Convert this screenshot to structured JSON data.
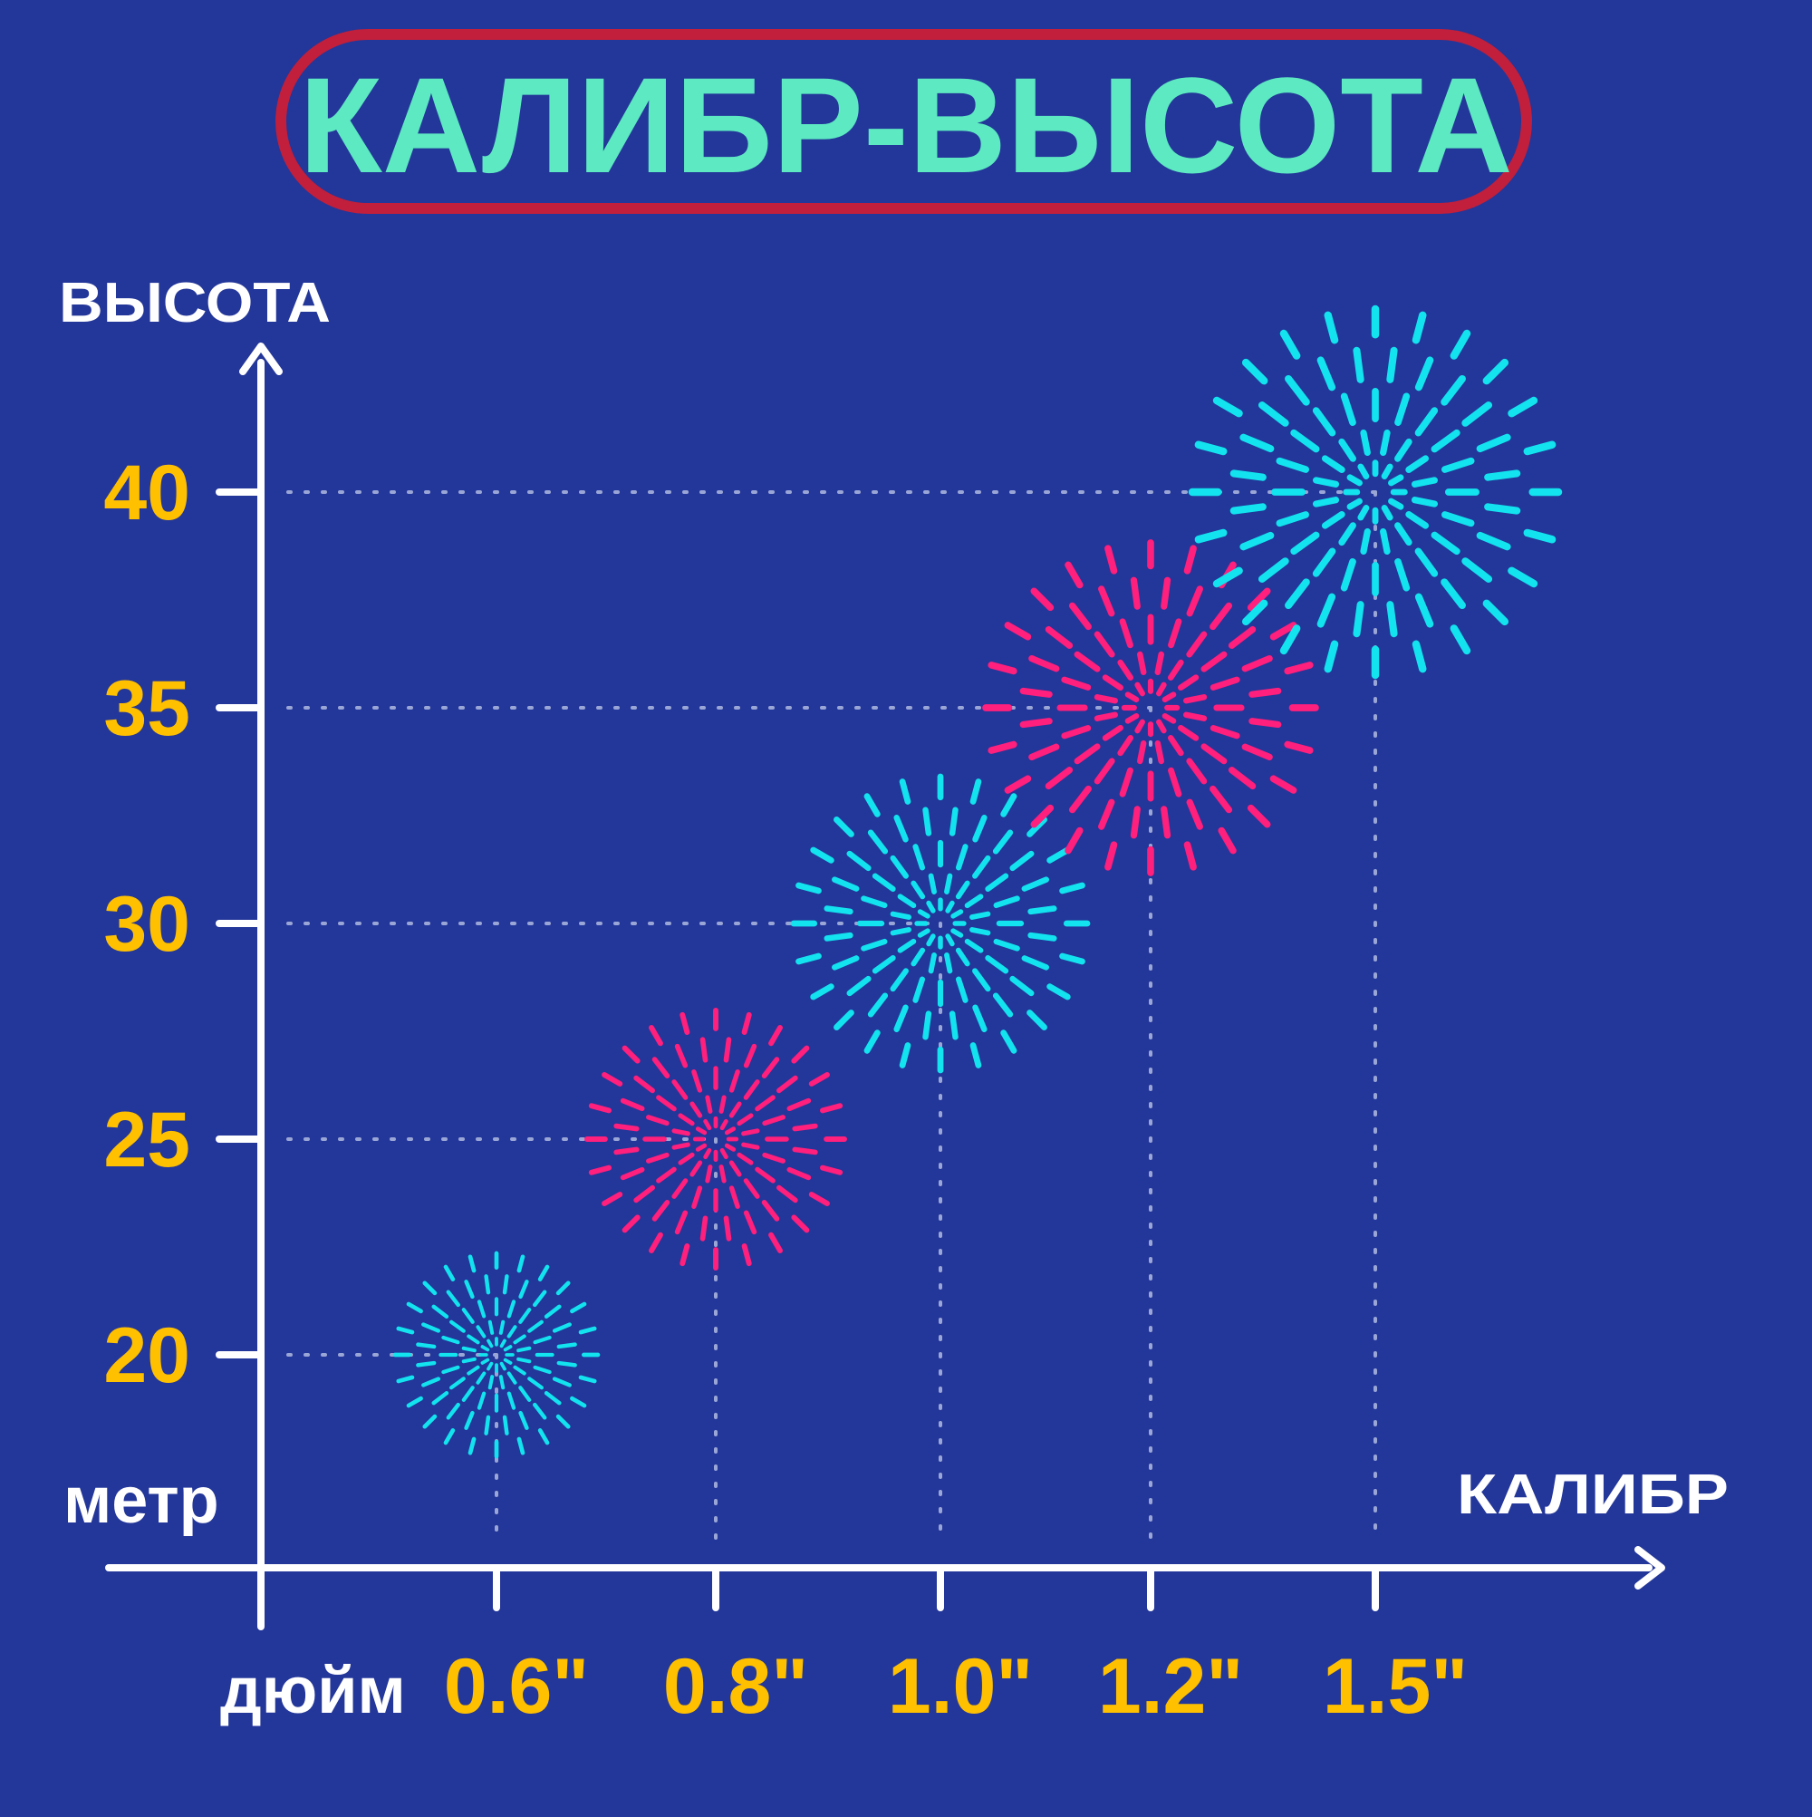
{
  "title": "КАЛИБР-ВЫСОТА",
  "colors": {
    "background": "#233699",
    "title_border": "#c11f3b",
    "title_text": "#5de9c1",
    "axis": "#ffffff",
    "tick_label": "#ffc000",
    "firework_cyan": "#12e3ef",
    "firework_pink": "#ff1f7c",
    "guide_dots": "#9aa6d6"
  },
  "chart_data": {
    "type": "scatter",
    "title": "КАЛИБР-ВЫСОТА",
    "xlabel": "КАЛИБР",
    "ylabel": "ВЫСОТА",
    "x_unit": "дюйм",
    "y_unit": "метр",
    "x_categories": [
      "0.6\"",
      "0.8\"",
      "1.0\"",
      "1.2\"",
      "1.5\""
    ],
    "y_ticks": [
      20,
      25,
      30,
      35,
      40
    ],
    "ylim": [
      16,
      44
    ],
    "grid": false,
    "points": [
      {
        "x": "0.6\"",
        "y": 20,
        "marker": "firework",
        "color": "cyan"
      },
      {
        "x": "0.8\"",
        "y": 25,
        "marker": "firework",
        "color": "pink"
      },
      {
        "x": "1.0\"",
        "y": 30,
        "marker": "firework",
        "color": "cyan"
      },
      {
        "x": "1.2\"",
        "y": 35,
        "marker": "firework",
        "color": "pink"
      },
      {
        "x": "1.5\"",
        "y": 40,
        "marker": "firework",
        "color": "cyan"
      }
    ]
  }
}
